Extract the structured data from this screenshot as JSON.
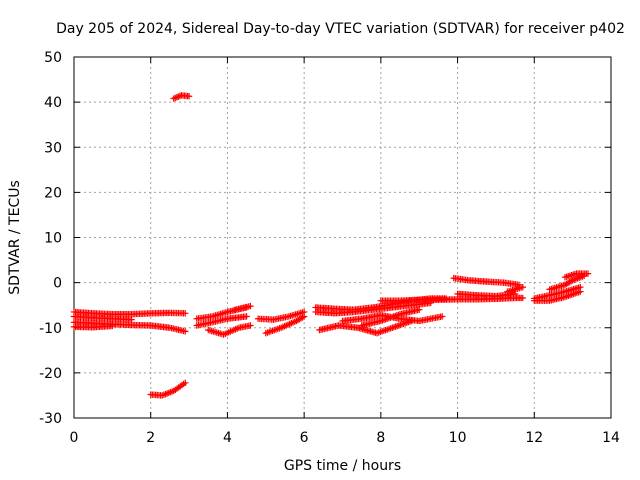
{
  "chart_data": {
    "type": "scatter",
    "title": "Day 205 of 2024, Sidereal Day-to-day VTEC variation (SDTVAR) for receiver p402",
    "xlabel": "GPS time / hours",
    "ylabel": "SDTVAR / TECUs",
    "xlim": [
      0,
      14
    ],
    "ylim": [
      -30,
      50
    ],
    "xticks": [
      0,
      2,
      4,
      6,
      8,
      10,
      12,
      14
    ],
    "yticks": [
      -30,
      -20,
      -10,
      0,
      10,
      20,
      30,
      40,
      50
    ],
    "grid": true,
    "marker": "plus",
    "color": "#ff0000",
    "tracks": [
      {
        "x": [
          0.0,
          0.5,
          1.0,
          1.5,
          2.0,
          2.5,
          2.9
        ],
        "y": [
          -6.5,
          -6.8,
          -7.0,
          -7.0,
          -6.8,
          -6.7,
          -6.8
        ]
      },
      {
        "x": [
          0.0,
          0.5,
          1.0,
          1.5
        ],
        "y": [
          -7.5,
          -7.8,
          -8.0,
          -8.2
        ]
      },
      {
        "x": [
          0.0,
          0.5,
          1.0,
          1.5,
          2.0,
          2.5,
          2.9
        ],
        "y": [
          -8.8,
          -9.0,
          -9.2,
          -9.4,
          -9.5,
          -10.0,
          -10.8
        ]
      },
      {
        "x": [
          0.0,
          0.5,
          1.0
        ],
        "y": [
          -9.8,
          -9.9,
          -9.6
        ]
      },
      {
        "x": [
          2.0,
          2.3,
          2.6,
          2.9
        ],
        "y": [
          -24.8,
          -25.0,
          -24.0,
          -22.2
        ]
      },
      {
        "x": [
          2.6,
          2.8,
          3.0
        ],
        "y": [
          40.8,
          41.5,
          41.3
        ]
      },
      {
        "x": [
          3.2,
          3.6,
          4.0,
          4.5
        ],
        "y": [
          -8.0,
          -7.5,
          -6.5,
          -5.5
        ]
      },
      {
        "x": [
          3.2,
          3.6,
          4.0,
          4.5
        ],
        "y": [
          -9.5,
          -8.8,
          -8.0,
          -7.5
        ]
      },
      {
        "x": [
          3.5,
          3.9,
          4.3,
          4.6
        ],
        "y": [
          -10.5,
          -11.5,
          -10.0,
          -9.5
        ]
      },
      {
        "x": [
          4.2,
          4.6
        ],
        "y": [
          -6.0,
          -5.2
        ]
      },
      {
        "x": [
          4.8,
          5.2,
          5.6,
          6.0
        ],
        "y": [
          -8.0,
          -8.2,
          -7.5,
          -6.5
        ]
      },
      {
        "x": [
          5.0,
          5.4,
          5.8,
          6.0
        ],
        "y": [
          -11.2,
          -10.0,
          -8.5,
          -7.5
        ]
      },
      {
        "x": [
          6.3,
          6.8,
          7.3,
          7.8,
          8.3,
          8.8,
          9.3,
          9.7
        ],
        "y": [
          -5.5,
          -5.8,
          -6.0,
          -5.5,
          -4.8,
          -4.0,
          -3.5,
          -3.5
        ]
      },
      {
        "x": [
          6.3,
          6.8,
          7.3,
          7.8,
          8.3,
          8.8,
          9.3
        ],
        "y": [
          -6.5,
          -6.8,
          -6.5,
          -6.0,
          -5.5,
          -5.0,
          -4.5
        ]
      },
      {
        "x": [
          6.4,
          6.9,
          7.4,
          7.9,
          8.3,
          8.8
        ],
        "y": [
          -10.5,
          -9.5,
          -10.0,
          -11.2,
          -10.0,
          -8.5
        ]
      },
      {
        "x": [
          7.0,
          7.5,
          8.0,
          8.5,
          9.0,
          9.6
        ],
        "y": [
          -8.5,
          -8.0,
          -7.2,
          -8.0,
          -8.5,
          -7.5
        ]
      },
      {
        "x": [
          7.5,
          8.0,
          8.5,
          9.0
        ],
        "y": [
          -9.5,
          -8.5,
          -7.0,
          -6.0
        ]
      },
      {
        "x": [
          8.0,
          8.5,
          9.0,
          9.5,
          10.0,
          10.5,
          11.0,
          11.5,
          11.7
        ],
        "y": [
          -4.0,
          -4.0,
          -3.8,
          -3.8,
          -3.7,
          -3.7,
          -3.6,
          -3.4,
          -3.4
        ]
      },
      {
        "x": [
          9.9,
          10.3,
          10.8,
          11.2,
          11.6
        ],
        "y": [
          1.0,
          0.5,
          0.2,
          0.0,
          -0.5
        ]
      },
      {
        "x": [
          10.0,
          10.5,
          11.0,
          11.5
        ],
        "y": [
          -2.5,
          -2.8,
          -3.0,
          -2.5
        ]
      },
      {
        "x": [
          11.3,
          11.7
        ],
        "y": [
          -2.0,
          -1.0
        ]
      },
      {
        "x": [
          12.0,
          12.4,
          12.8,
          13.2
        ],
        "y": [
          -3.5,
          -2.8,
          -2.0,
          -1.0
        ]
      },
      {
        "x": [
          12.0,
          12.4,
          12.8,
          13.2
        ],
        "y": [
          -4.0,
          -4.0,
          -3.2,
          -2.0
        ]
      },
      {
        "x": [
          12.4,
          12.8,
          13.0,
          13.3
        ],
        "y": [
          -1.5,
          -0.5,
          0.5,
          1.5
        ]
      },
      {
        "x": [
          12.8,
          13.1,
          13.4
        ],
        "y": [
          1.2,
          2.0,
          2.0
        ]
      }
    ]
  }
}
